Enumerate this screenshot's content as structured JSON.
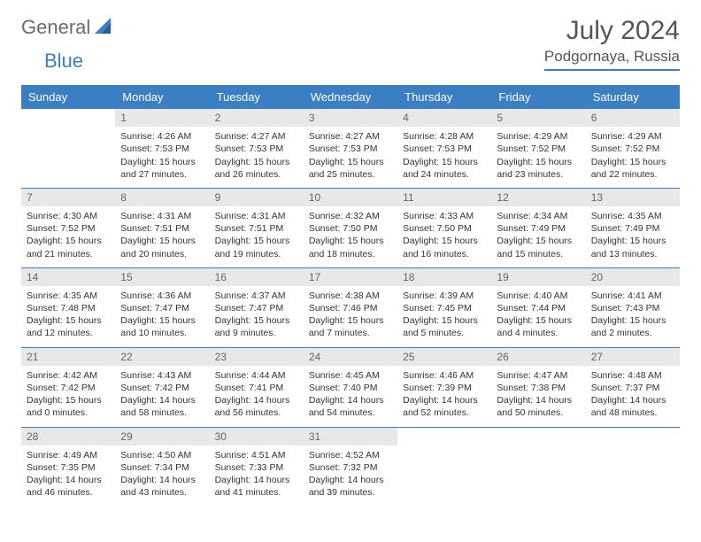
{
  "brand": {
    "part1": "General",
    "part2": "Blue"
  },
  "title": "July 2024",
  "location": "Podgornaya, Russia",
  "colors": {
    "accent": "#3a7fc4",
    "header_bg": "#3a7fc4",
    "daynum_bg": "#e8e8e8",
    "text": "#333333",
    "muted": "#6b6b6b",
    "bg": "#ffffff"
  },
  "typography": {
    "title_fontsize": 30,
    "location_fontsize": 17,
    "day_header_fontsize": 13,
    "cell_fontsize": 10.5
  },
  "day_names": [
    "Sunday",
    "Monday",
    "Tuesday",
    "Wednesday",
    "Thursday",
    "Friday",
    "Saturday"
  ],
  "weeks": [
    [
      {
        "day": "",
        "sunrise": "",
        "sunset": "",
        "daylight1": "",
        "daylight2": ""
      },
      {
        "day": "1",
        "sunrise": "Sunrise: 4:26 AM",
        "sunset": "Sunset: 7:53 PM",
        "daylight1": "Daylight: 15 hours",
        "daylight2": "and 27 minutes."
      },
      {
        "day": "2",
        "sunrise": "Sunrise: 4:27 AM",
        "sunset": "Sunset: 7:53 PM",
        "daylight1": "Daylight: 15 hours",
        "daylight2": "and 26 minutes."
      },
      {
        "day": "3",
        "sunrise": "Sunrise: 4:27 AM",
        "sunset": "Sunset: 7:53 PM",
        "daylight1": "Daylight: 15 hours",
        "daylight2": "and 25 minutes."
      },
      {
        "day": "4",
        "sunrise": "Sunrise: 4:28 AM",
        "sunset": "Sunset: 7:53 PM",
        "daylight1": "Daylight: 15 hours",
        "daylight2": "and 24 minutes."
      },
      {
        "day": "5",
        "sunrise": "Sunrise: 4:29 AM",
        "sunset": "Sunset: 7:52 PM",
        "daylight1": "Daylight: 15 hours",
        "daylight2": "and 23 minutes."
      },
      {
        "day": "6",
        "sunrise": "Sunrise: 4:29 AM",
        "sunset": "Sunset: 7:52 PM",
        "daylight1": "Daylight: 15 hours",
        "daylight2": "and 22 minutes."
      }
    ],
    [
      {
        "day": "7",
        "sunrise": "Sunrise: 4:30 AM",
        "sunset": "Sunset: 7:52 PM",
        "daylight1": "Daylight: 15 hours",
        "daylight2": "and 21 minutes."
      },
      {
        "day": "8",
        "sunrise": "Sunrise: 4:31 AM",
        "sunset": "Sunset: 7:51 PM",
        "daylight1": "Daylight: 15 hours",
        "daylight2": "and 20 minutes."
      },
      {
        "day": "9",
        "sunrise": "Sunrise: 4:31 AM",
        "sunset": "Sunset: 7:51 PM",
        "daylight1": "Daylight: 15 hours",
        "daylight2": "and 19 minutes."
      },
      {
        "day": "10",
        "sunrise": "Sunrise: 4:32 AM",
        "sunset": "Sunset: 7:50 PM",
        "daylight1": "Daylight: 15 hours",
        "daylight2": "and 18 minutes."
      },
      {
        "day": "11",
        "sunrise": "Sunrise: 4:33 AM",
        "sunset": "Sunset: 7:50 PM",
        "daylight1": "Daylight: 15 hours",
        "daylight2": "and 16 minutes."
      },
      {
        "day": "12",
        "sunrise": "Sunrise: 4:34 AM",
        "sunset": "Sunset: 7:49 PM",
        "daylight1": "Daylight: 15 hours",
        "daylight2": "and 15 minutes."
      },
      {
        "day": "13",
        "sunrise": "Sunrise: 4:35 AM",
        "sunset": "Sunset: 7:49 PM",
        "daylight1": "Daylight: 15 hours",
        "daylight2": "and 13 minutes."
      }
    ],
    [
      {
        "day": "14",
        "sunrise": "Sunrise: 4:35 AM",
        "sunset": "Sunset: 7:48 PM",
        "daylight1": "Daylight: 15 hours",
        "daylight2": "and 12 minutes."
      },
      {
        "day": "15",
        "sunrise": "Sunrise: 4:36 AM",
        "sunset": "Sunset: 7:47 PM",
        "daylight1": "Daylight: 15 hours",
        "daylight2": "and 10 minutes."
      },
      {
        "day": "16",
        "sunrise": "Sunrise: 4:37 AM",
        "sunset": "Sunset: 7:47 PM",
        "daylight1": "Daylight: 15 hours",
        "daylight2": "and 9 minutes."
      },
      {
        "day": "17",
        "sunrise": "Sunrise: 4:38 AM",
        "sunset": "Sunset: 7:46 PM",
        "daylight1": "Daylight: 15 hours",
        "daylight2": "and 7 minutes."
      },
      {
        "day": "18",
        "sunrise": "Sunrise: 4:39 AM",
        "sunset": "Sunset: 7:45 PM",
        "daylight1": "Daylight: 15 hours",
        "daylight2": "and 5 minutes."
      },
      {
        "day": "19",
        "sunrise": "Sunrise: 4:40 AM",
        "sunset": "Sunset: 7:44 PM",
        "daylight1": "Daylight: 15 hours",
        "daylight2": "and 4 minutes."
      },
      {
        "day": "20",
        "sunrise": "Sunrise: 4:41 AM",
        "sunset": "Sunset: 7:43 PM",
        "daylight1": "Daylight: 15 hours",
        "daylight2": "and 2 minutes."
      }
    ],
    [
      {
        "day": "21",
        "sunrise": "Sunrise: 4:42 AM",
        "sunset": "Sunset: 7:42 PM",
        "daylight1": "Daylight: 15 hours",
        "daylight2": "and 0 minutes."
      },
      {
        "day": "22",
        "sunrise": "Sunrise: 4:43 AM",
        "sunset": "Sunset: 7:42 PM",
        "daylight1": "Daylight: 14 hours",
        "daylight2": "and 58 minutes."
      },
      {
        "day": "23",
        "sunrise": "Sunrise: 4:44 AM",
        "sunset": "Sunset: 7:41 PM",
        "daylight1": "Daylight: 14 hours",
        "daylight2": "and 56 minutes."
      },
      {
        "day": "24",
        "sunrise": "Sunrise: 4:45 AM",
        "sunset": "Sunset: 7:40 PM",
        "daylight1": "Daylight: 14 hours",
        "daylight2": "and 54 minutes."
      },
      {
        "day": "25",
        "sunrise": "Sunrise: 4:46 AM",
        "sunset": "Sunset: 7:39 PM",
        "daylight1": "Daylight: 14 hours",
        "daylight2": "and 52 minutes."
      },
      {
        "day": "26",
        "sunrise": "Sunrise: 4:47 AM",
        "sunset": "Sunset: 7:38 PM",
        "daylight1": "Daylight: 14 hours",
        "daylight2": "and 50 minutes."
      },
      {
        "day": "27",
        "sunrise": "Sunrise: 4:48 AM",
        "sunset": "Sunset: 7:37 PM",
        "daylight1": "Daylight: 14 hours",
        "daylight2": "and 48 minutes."
      }
    ],
    [
      {
        "day": "28",
        "sunrise": "Sunrise: 4:49 AM",
        "sunset": "Sunset: 7:35 PM",
        "daylight1": "Daylight: 14 hours",
        "daylight2": "and 46 minutes."
      },
      {
        "day": "29",
        "sunrise": "Sunrise: 4:50 AM",
        "sunset": "Sunset: 7:34 PM",
        "daylight1": "Daylight: 14 hours",
        "daylight2": "and 43 minutes."
      },
      {
        "day": "30",
        "sunrise": "Sunrise: 4:51 AM",
        "sunset": "Sunset: 7:33 PM",
        "daylight1": "Daylight: 14 hours",
        "daylight2": "and 41 minutes."
      },
      {
        "day": "31",
        "sunrise": "Sunrise: 4:52 AM",
        "sunset": "Sunset: 7:32 PM",
        "daylight1": "Daylight: 14 hours",
        "daylight2": "and 39 minutes."
      },
      {
        "day": "",
        "sunrise": "",
        "sunset": "",
        "daylight1": "",
        "daylight2": ""
      },
      {
        "day": "",
        "sunrise": "",
        "sunset": "",
        "daylight1": "",
        "daylight2": ""
      },
      {
        "day": "",
        "sunrise": "",
        "sunset": "",
        "daylight1": "",
        "daylight2": ""
      }
    ]
  ]
}
